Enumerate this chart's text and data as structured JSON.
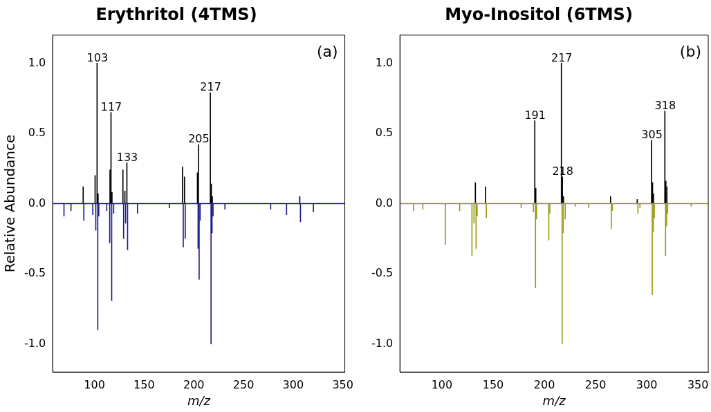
{
  "chart_data": [
    {
      "type": "bar",
      "title": "Erythritol (4TMS)",
      "xlabel": "m/z",
      "ylabel": "Relative Abundance",
      "xlim": [
        58,
        352
      ],
      "xticks": [
        100,
        150,
        200,
        250,
        300,
        350
      ],
      "ylim": [
        -1.2,
        1.2
      ],
      "yticks": [
        {
          "value": -1,
          "label": "-1.0"
        },
        {
          "value": -0.5,
          "label": "-0.5"
        },
        {
          "value": 0,
          "label": "0.0"
        },
        {
          "value": 0.5,
          "label": "0.5"
        },
        {
          "value": 1,
          "label": "1.0"
        }
      ],
      "grid": false,
      "legend": false,
      "series": [
        {
          "color": "#000000",
          "x": [
            89,
            101,
            103,
            104,
            116,
            117,
            118,
            129,
            131,
            133,
            189,
            191,
            204,
            205,
            217,
            218,
            219,
            307
          ],
          "values": [
            0.12,
            0.2,
            1.0,
            0.07,
            0.24,
            0.65,
            0.08,
            0.24,
            0.09,
            0.29,
            0.26,
            0.19,
            0.22,
            0.42,
            0.79,
            0.14,
            0.05,
            0.05
          ]
        },
        {
          "color": "#1c1c8c",
          "x": [
            69,
            76,
            89,
            98,
            101,
            103,
            104,
            112,
            115,
            117,
            119,
            129,
            131,
            133,
            143,
            175,
            189,
            191,
            204,
            205,
            206,
            217,
            218,
            219,
            231,
            277,
            293,
            307,
            320
          ],
          "values": [
            -0.09,
            -0.05,
            -0.12,
            -0.08,
            -0.19,
            -0.9,
            -0.09,
            -0.05,
            -0.28,
            -0.69,
            -0.07,
            -0.25,
            -0.14,
            -0.33,
            -0.07,
            -0.03,
            -0.31,
            -0.25,
            -0.32,
            -0.54,
            -0.12,
            -1.0,
            -0.21,
            -0.09,
            -0.04,
            -0.04,
            -0.08,
            -0.13,
            -0.06
          ]
        }
      ],
      "ref_lines": [
        {
          "axis": "y",
          "value": 0,
          "color": "#1c1c8c"
        }
      ],
      "annotations": [
        "(a)",
        {
          "text": "103",
          "x": 103,
          "y": 1.0
        },
        {
          "text": "117",
          "x": 117,
          "y": 0.65
        },
        {
          "text": "133",
          "x": 133,
          "y": 0.29
        },
        {
          "text": "205",
          "x": 205,
          "y": 0.42
        },
        {
          "text": "217",
          "x": 217,
          "y": 0.79
        }
      ]
    },
    {
      "type": "bar",
      "title": "Myo-Inositol (6TMS)",
      "xlabel": "m/z",
      "xlim": [
        59,
        360
      ],
      "xticks": [
        100,
        150,
        200,
        250,
        300,
        350
      ],
      "ylim": [
        -1.2,
        1.2
      ],
      "yticks": [
        {
          "value": -1,
          "label": "-1.0"
        },
        {
          "value": -0.5,
          "label": "-0.5"
        },
        {
          "value": 0,
          "label": "0.0"
        },
        {
          "value": 0.5,
          "label": "0.5"
        },
        {
          "value": 1,
          "label": "1.0"
        }
      ],
      "grid": false,
      "legend": false,
      "series": [
        {
          "color": "#000000",
          "x": [
            133,
            143,
            191,
            192,
            217,
            218,
            219,
            265,
            291,
            305,
            306,
            307,
            318,
            319,
            320
          ],
          "values": [
            0.15,
            0.12,
            0.59,
            0.11,
            1.0,
            0.19,
            0.05,
            0.05,
            0.03,
            0.45,
            0.15,
            0.07,
            0.66,
            0.16,
            0.12
          ]
        },
        {
          "color": "#9a9a14",
          "x": [
            72,
            81,
            103,
            117,
            129,
            131,
            133,
            134,
            143,
            177,
            189,
            191,
            192,
            204,
            205,
            217,
            218,
            220,
            230,
            243,
            265,
            266,
            291,
            293,
            305,
            306,
            307,
            318,
            319,
            320,
            343
          ],
          "values": [
            -0.05,
            -0.04,
            -0.29,
            -0.05,
            -0.37,
            -0.14,
            -0.32,
            -0.09,
            -0.1,
            -0.03,
            -0.06,
            -0.6,
            -0.11,
            -0.26,
            -0.07,
            -1.0,
            -0.21,
            -0.11,
            -0.02,
            -0.03,
            -0.18,
            -0.05,
            -0.07,
            -0.03,
            -0.65,
            -0.2,
            -0.1,
            -0.37,
            -0.16,
            -0.07,
            -0.02
          ]
        }
      ],
      "ref_lines": [
        {
          "axis": "y",
          "value": 0,
          "color": "#9a9a14"
        }
      ],
      "annotations": [
        "(b)",
        {
          "text": "191",
          "x": 191,
          "y": 0.59
        },
        {
          "text": "217",
          "x": 217,
          "y": 1.0
        },
        {
          "text": "218",
          "x": 218,
          "y": 0.19
        },
        {
          "text": "305",
          "x": 305,
          "y": 0.45
        },
        {
          "text": "318",
          "x": 318,
          "y": 0.66
        }
      ]
    }
  ]
}
